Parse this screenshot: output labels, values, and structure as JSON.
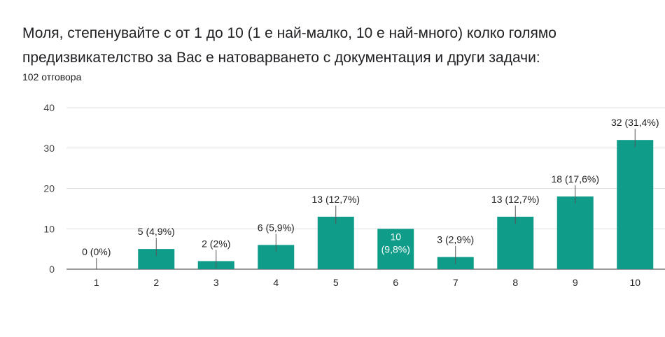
{
  "form": {
    "question_line1": "Моля, степенувайте с от 1 до 10 (1 е най-малко, 10 е най-много) колко голямо",
    "question_line2": "предизвикателство за Вас е натоварването с документация и други задачи:",
    "response_count": "102 отговора"
  },
  "colors": {
    "bar": "#0f9d8a",
    "grid": "#e0e0e0",
    "axis": "#333333",
    "leader": "#555555"
  },
  "chart_data": {
    "type": "bar",
    "title": "",
    "xlabel": "",
    "ylabel": "",
    "ylim": [
      0,
      40
    ],
    "yticks": [
      0,
      10,
      20,
      30,
      40
    ],
    "grid": true,
    "legend": "none",
    "categories": [
      "1",
      "2",
      "3",
      "4",
      "5",
      "6",
      "7",
      "8",
      "9",
      "10"
    ],
    "values": [
      0,
      5,
      2,
      6,
      13,
      10,
      3,
      13,
      18,
      32
    ],
    "labels": [
      "0 (0%)",
      "5 (4,9%)",
      "2 (2%)",
      "6 (5,9%)",
      "13 (12,7%)",
      "10 (9,8%)",
      "3 (2,9%)",
      "13 (12,7%)",
      "18 (17,6%)",
      "32 (31,4%)"
    ]
  }
}
